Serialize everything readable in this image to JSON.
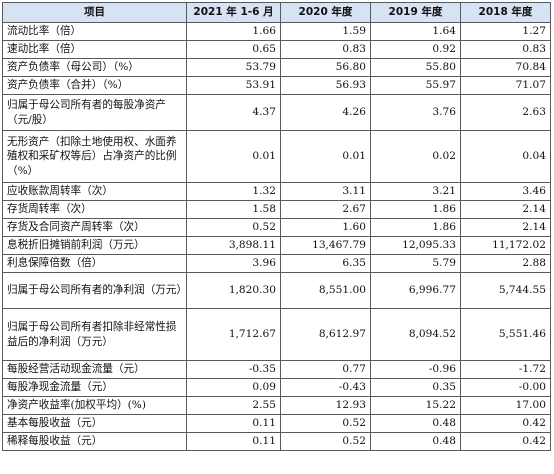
{
  "table": {
    "headers": [
      "项目",
      "2021 年 1-6 月",
      "2020 年度",
      "2019 年度",
      "2018 年度"
    ],
    "rows": [
      {
        "label": "流动比率（倍）",
        "values": [
          "1.66",
          "1.59",
          "1.64",
          "1.27"
        ]
      },
      {
        "label": "速动比率（倍）",
        "values": [
          "0.65",
          "0.83",
          "0.92",
          "0.83"
        ]
      },
      {
        "label": "资产负债率（母公司）（%）",
        "values": [
          "53.79",
          "56.80",
          "55.80",
          "70.84"
        ]
      },
      {
        "label": "资产负债率（合并）（%）",
        "values": [
          "53.91",
          "56.93",
          "55.97",
          "71.07"
        ]
      },
      {
        "label": "归属于母公司所有者的每股净资产（元/股）",
        "values": [
          "4.37",
          "4.26",
          "3.76",
          "2.63"
        ]
      },
      {
        "label": "无形资产（扣除土地使用权、水面养殖权和采矿权等后）占净资产的比例（%）",
        "values": [
          "0.01",
          "0.01",
          "0.02",
          "0.04"
        ]
      },
      {
        "label": "应收账款周转率（次）",
        "values": [
          "1.32",
          "3.11",
          "3.21",
          "3.46"
        ]
      },
      {
        "label": "存货周转率（次）",
        "values": [
          "1.58",
          "2.67",
          "1.86",
          "2.14"
        ]
      },
      {
        "label": "存货及合同资产周转率（次）",
        "values": [
          "0.52",
          "1.60",
          "1.86",
          "2.14"
        ]
      },
      {
        "label": "息税折旧摊销前利润（万元）",
        "values": [
          "3,898.11",
          "13,467.79",
          "12,095.33",
          "11,172.02"
        ]
      },
      {
        "label": "利息保障倍数（倍）",
        "values": [
          "3.96",
          "6.35",
          "5.79",
          "2.88"
        ]
      },
      {
        "label": "归属于母公司所有者的净利润（万元）",
        "values": [
          "1,820.30",
          "8,551.00",
          "6,996.77",
          "5,744.55"
        ]
      },
      {
        "label": "归属于母公司所有者扣除非经常性损益后的净利润（万元）",
        "values": [
          "1,712.67",
          "8,612.97",
          "8,094.52",
          "5,551.46"
        ]
      },
      {
        "label": "每股经营活动现金流量（元）",
        "values": [
          "-0.35",
          "0.77",
          "-0.96",
          "-1.72"
        ]
      },
      {
        "label": "每股净现金流量（元）",
        "values": [
          "0.09",
          "-0.43",
          "0.35",
          "-0.00"
        ]
      },
      {
        "label": "净资产收益率(加权平均）(%)",
        "values": [
          "2.55",
          "12.93",
          "15.22",
          "17.00"
        ]
      },
      {
        "label": "基本每股收益（元）",
        "values": [
          "0.11",
          "0.52",
          "0.48",
          "0.42"
        ]
      },
      {
        "label": "稀释每股收益（元）",
        "values": [
          "0.11",
          "0.52",
          "0.48",
          "0.42"
        ]
      }
    ]
  },
  "colors": {
    "header_bg": "#d5e3f2",
    "border": "#5a5a5a",
    "text": "#111111"
  }
}
